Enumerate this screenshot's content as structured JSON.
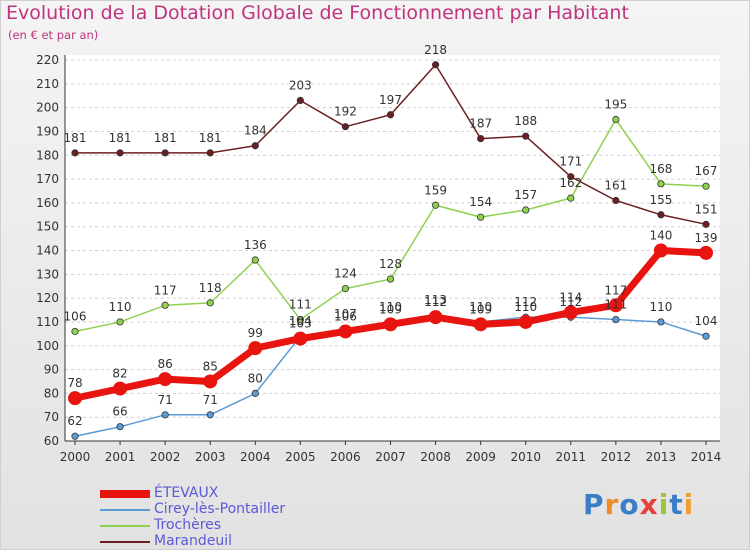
{
  "header": {
    "title": "Evolution de la Dotation Globale de Fonctionnement par Habitant",
    "subtitle": "(en € et par an)"
  },
  "logo": {
    "text": "Proxiti",
    "letters": [
      "P",
      "r",
      "o",
      "x",
      "i",
      "t",
      "i"
    ],
    "letter_colors": [
      "#3a7ec8",
      "#f08a24",
      "#3a7ec8",
      "#e8413c",
      "#9ac53c",
      "#3a7ec8",
      "#f0a030"
    ]
  },
  "chart_data": {
    "type": "line",
    "title": "Evolution de la Dotation Globale de Fonctionnement par Habitant",
    "subtitle": "(en € et par an)",
    "xlabel": "",
    "ylabel": "",
    "ylim": [
      60,
      220
    ],
    "yticks": [
      60,
      70,
      80,
      90,
      100,
      110,
      120,
      130,
      140,
      150,
      160,
      170,
      180,
      190,
      200,
      210,
      220
    ],
    "grid": "horizontal dashed",
    "legend_position": "bottom-left",
    "x": [
      "2000",
      "2001",
      "2002",
      "2003",
      "2004",
      "2005",
      "2006",
      "2007",
      "2008",
      "2009",
      "2010",
      "2011",
      "2012",
      "2013",
      "2014"
    ],
    "series": [
      {
        "name": "Marandeuil",
        "color": "#6b1f22",
        "values": [
          181,
          181,
          181,
          181,
          184,
          203,
          192,
          197,
          218,
          187,
          188,
          171,
          161,
          155,
          151
        ],
        "labels": [
          "181",
          "181",
          "181",
          "181",
          "184",
          "203",
          "192",
          "197",
          "218",
          "187",
          "188",
          "171",
          "161",
          "155",
          "151"
        ]
      },
      {
        "name": "Trochères",
        "color": "#8fd14f",
        "values": [
          106,
          110,
          117,
          118,
          136,
          111,
          124,
          128,
          159,
          154,
          157,
          162,
          195,
          168,
          167
        ],
        "labels": [
          "106",
          "110",
          "117",
          "118",
          "136",
          "111",
          "124",
          "128",
          "159",
          "154",
          "157",
          "162",
          "195",
          "168",
          "167"
        ]
      },
      {
        "name": "Cirey-lès-Pontailler",
        "color": "#5b9bd5",
        "values": [
          62,
          66,
          71,
          71,
          80,
          104,
          107,
          110,
          113,
          110,
          112,
          112,
          111,
          110,
          104
        ],
        "labels": [
          "62",
          "66",
          "71",
          "71",
          "80",
          "104",
          "107",
          "110",
          "113",
          "110",
          "112",
          "112",
          "111",
          "110",
          "104"
        ]
      },
      {
        "name": "ÉTEVAUX",
        "color": "#e8140f",
        "values": [
          78,
          82,
          86,
          85,
          99,
          103,
          106,
          109,
          112,
          109,
          110,
          114,
          117,
          140,
          139
        ],
        "labels": [
          "78",
          "82",
          "86",
          "85",
          "99",
          "103",
          "106",
          "109",
          "112",
          "109",
          "110",
          "114",
          "117",
          "140",
          "139"
        ]
      }
    ],
    "legend_order": [
      "ÉTEVAUX",
      "Cirey-lès-Pontailler",
      "Trochères",
      "Marandeuil"
    ]
  }
}
